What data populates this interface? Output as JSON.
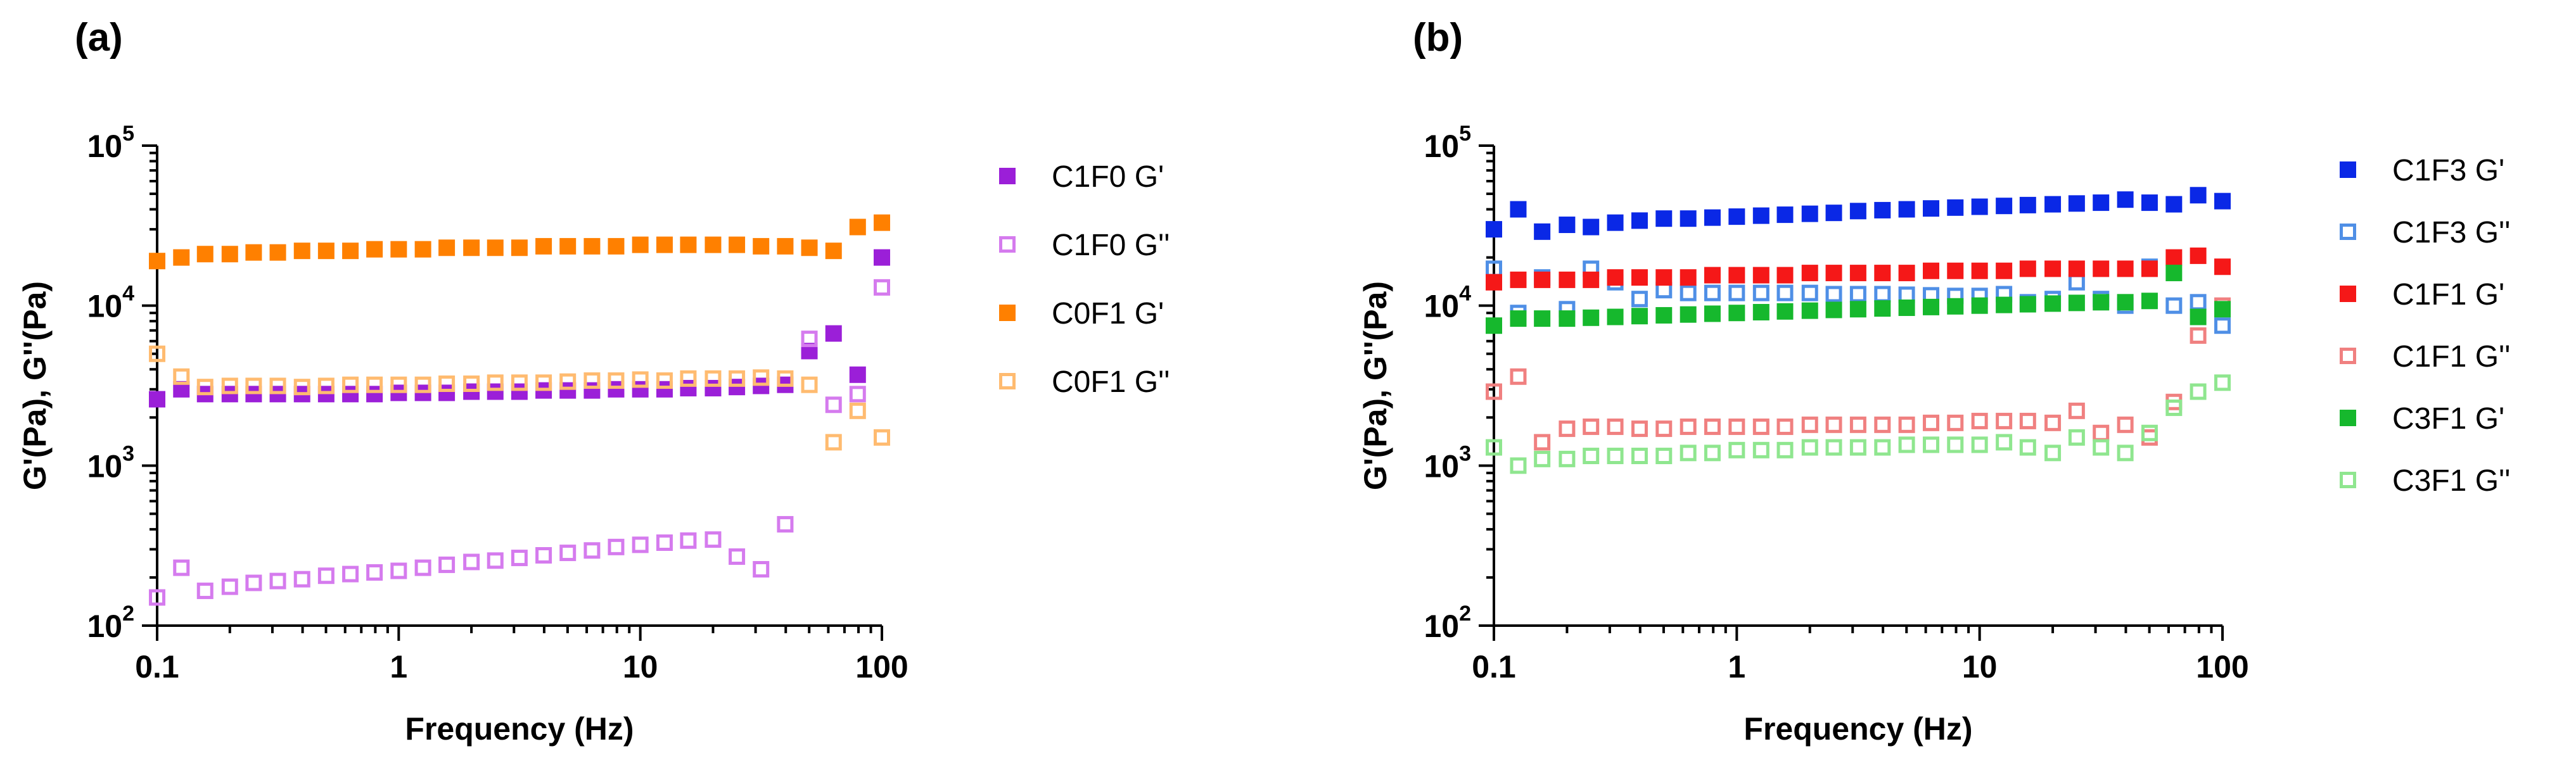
{
  "chart_data": [
    {
      "panel_label": "(a)",
      "type": "scatter",
      "x_scale": "log",
      "y_scale": "log",
      "xlabel": "Frequency (Hz)",
      "ylabel": "G'(Pa), G''(Pa)",
      "xlim": [
        0.1,
        100
      ],
      "ylim": [
        100,
        100000
      ],
      "x_ticks": [
        {
          "value": 0.1,
          "label": "0.1"
        },
        {
          "value": 1,
          "label": "1"
        },
        {
          "value": 10,
          "label": "10"
        },
        {
          "value": 100,
          "label": "100"
        }
      ],
      "y_ticks": [
        {
          "value": 100,
          "base": "10",
          "exp": "2"
        },
        {
          "value": 1000,
          "base": "10",
          "exp": "3"
        },
        {
          "value": 10000,
          "base": "10",
          "exp": "4"
        },
        {
          "value": 100000,
          "base": "10",
          "exp": "5"
        }
      ],
      "legend_position": "right",
      "series": [
        {
          "name": "C1F0 G'",
          "color": "#9B1FD8",
          "marker": "filled-square",
          "x": [
            0.1,
            0.126,
            0.158,
            0.2,
            0.251,
            0.316,
            0.398,
            0.501,
            0.631,
            0.794,
            1,
            1.26,
            1.58,
            2,
            2.51,
            3.16,
            3.98,
            5.01,
            6.31,
            7.94,
            10,
            12.6,
            15.8,
            20,
            25.1,
            31.6,
            39.8,
            50.1,
            63.1,
            79.4,
            100
          ],
          "y": [
            2600,
            3000,
            2800,
            2800,
            2800,
            2800,
            2800,
            2800,
            2800,
            2800,
            2850,
            2850,
            2850,
            2900,
            2900,
            2900,
            2950,
            2950,
            2950,
            3000,
            3000,
            3000,
            3050,
            3050,
            3100,
            3150,
            3200,
            5200,
            6700,
            3700,
            20000
          ]
        },
        {
          "name": "C1F0 G''",
          "color": "#D57BEE",
          "marker": "open-square",
          "x": [
            0.1,
            0.126,
            0.158,
            0.2,
            0.251,
            0.316,
            0.398,
            0.501,
            0.631,
            0.794,
            1,
            1.26,
            1.58,
            2,
            2.51,
            3.16,
            3.98,
            5.01,
            6.31,
            7.94,
            10,
            12.6,
            15.8,
            20,
            25.1,
            31.6,
            39.8,
            50.1,
            63.1,
            79.4,
            100
          ],
          "y": [
            150,
            230,
            165,
            175,
            185,
            190,
            195,
            205,
            210,
            215,
            220,
            230,
            240,
            250,
            255,
            265,
            275,
            285,
            295,
            310,
            320,
            330,
            340,
            345,
            270,
            225,
            430,
            6200,
            2400,
            2800,
            13000
          ]
        },
        {
          "name": "C0F1 G'",
          "color": "#FF8000",
          "marker": "filled-square",
          "x": [
            0.1,
            0.126,
            0.158,
            0.2,
            0.251,
            0.316,
            0.398,
            0.501,
            0.631,
            0.794,
            1,
            1.26,
            1.58,
            2,
            2.51,
            3.16,
            3.98,
            5.01,
            6.31,
            7.94,
            10,
            12.6,
            15.8,
            20,
            25.1,
            31.6,
            39.8,
            50.1,
            63.1,
            79.4,
            100
          ],
          "y": [
            19000,
            20000,
            21000,
            21000,
            21500,
            21500,
            22000,
            22000,
            22000,
            22500,
            22500,
            22500,
            23000,
            23000,
            23000,
            23000,
            23500,
            23500,
            23500,
            23500,
            24000,
            24000,
            24000,
            24000,
            24000,
            23500,
            23500,
            23000,
            22000,
            31000,
            33000
          ]
        },
        {
          "name": "C0F1 G''",
          "color": "#FFBB70",
          "marker": "open-square",
          "x": [
            0.1,
            0.126,
            0.158,
            0.2,
            0.251,
            0.316,
            0.398,
            0.501,
            0.631,
            0.794,
            1,
            1.26,
            1.58,
            2,
            2.51,
            3.16,
            3.98,
            5.01,
            6.31,
            7.94,
            10,
            12.6,
            15.8,
            20,
            25.1,
            31.6,
            39.8,
            50.1,
            63.1,
            79.4,
            100
          ],
          "y": [
            5000,
            3600,
            3100,
            3150,
            3150,
            3150,
            3100,
            3150,
            3200,
            3200,
            3200,
            3200,
            3250,
            3250,
            3300,
            3300,
            3300,
            3350,
            3400,
            3400,
            3450,
            3400,
            3500,
            3500,
            3500,
            3550,
            3500,
            3200,
            1400,
            2200,
            1500
          ]
        }
      ]
    },
    {
      "panel_label": "(b)",
      "type": "scatter",
      "x_scale": "log",
      "y_scale": "log",
      "xlabel": "Frequency (Hz)",
      "ylabel": "G'(Pa), G''(Pa)",
      "xlim": [
        0.1,
        100
      ],
      "ylim": [
        100,
        100000
      ],
      "x_ticks": [
        {
          "value": 0.1,
          "label": "0.1"
        },
        {
          "value": 1,
          "label": "1"
        },
        {
          "value": 10,
          "label": "10"
        },
        {
          "value": 100,
          "label": "100"
        }
      ],
      "y_ticks": [
        {
          "value": 100,
          "base": "10",
          "exp": "2"
        },
        {
          "value": 1000,
          "base": "10",
          "exp": "3"
        },
        {
          "value": 10000,
          "base": "10",
          "exp": "4"
        },
        {
          "value": 100000,
          "base": "10",
          "exp": "5"
        }
      ],
      "legend_position": "right",
      "series": [
        {
          "name": "C1F3 G'",
          "color": "#0A28E6",
          "marker": "filled-square",
          "x": [
            0.1,
            0.126,
            0.158,
            0.2,
            0.251,
            0.316,
            0.398,
            0.501,
            0.631,
            0.794,
            1,
            1.26,
            1.58,
            2,
            2.51,
            3.16,
            3.98,
            5.01,
            6.31,
            7.94,
            10,
            12.6,
            15.8,
            20,
            25.1,
            31.6,
            39.8,
            50.1,
            63.1,
            79.4,
            100
          ],
          "y": [
            30000,
            40000,
            29000,
            32000,
            31000,
            33000,
            34000,
            35000,
            35000,
            35500,
            36000,
            36500,
            37000,
            37500,
            38000,
            39000,
            39500,
            40000,
            40500,
            41000,
            41500,
            42000,
            42500,
            43000,
            43500,
            44000,
            46000,
            44000,
            43000,
            49000,
            45000
          ]
        },
        {
          "name": "C1F3 G''",
          "color": "#4F8FE6",
          "marker": "open-square",
          "x": [
            0.1,
            0.126,
            0.158,
            0.2,
            0.251,
            0.316,
            0.398,
            0.501,
            0.631,
            0.794,
            1,
            1.26,
            1.58,
            2,
            2.51,
            3.16,
            3.98,
            5.01,
            6.31,
            7.94,
            10,
            12.6,
            15.8,
            20,
            25.1,
            31.6,
            39.8,
            50.1,
            63.1,
            79.4,
            100
          ],
          "y": [
            17000,
            9000,
            15000,
            9500,
            17000,
            14000,
            11000,
            12500,
            12000,
            12000,
            12000,
            12000,
            12000,
            12000,
            11800,
            11800,
            11800,
            11700,
            11600,
            11500,
            11500,
            11800,
            10500,
            11000,
            14000,
            11000,
            10000,
            17500,
            10000,
            10500,
            7500
          ]
        },
        {
          "name": "C1F1 G'",
          "color": "#F51818",
          "marker": "filled-square",
          "x": [
            0.1,
            0.126,
            0.158,
            0.2,
            0.251,
            0.316,
            0.398,
            0.501,
            0.631,
            0.794,
            1,
            1.26,
            1.58,
            2,
            2.51,
            3.16,
            3.98,
            5.01,
            6.31,
            7.94,
            10,
            12.6,
            15.8,
            20,
            25.1,
            31.6,
            39.8,
            50.1,
            63.1,
            79.4,
            100
          ],
          "y": [
            14000,
            14500,
            14500,
            14500,
            14500,
            15000,
            15000,
            15000,
            15000,
            15500,
            15500,
            15500,
            15500,
            16000,
            16000,
            16000,
            16000,
            16000,
            16500,
            16500,
            16500,
            16500,
            17000,
            17000,
            17000,
            17000,
            17000,
            17000,
            20000,
            20500,
            17500
          ]
        },
        {
          "name": "C1F1 G''",
          "color": "#F08080",
          "marker": "open-square",
          "x": [
            0.1,
            0.126,
            0.158,
            0.2,
            0.251,
            0.316,
            0.398,
            0.501,
            0.631,
            0.794,
            1,
            1.26,
            1.58,
            2,
            2.51,
            3.16,
            3.98,
            5.01,
            6.31,
            7.94,
            10,
            12.6,
            15.8,
            20,
            25.1,
            31.6,
            39.8,
            50.1,
            63.1,
            79.4,
            100
          ],
          "y": [
            2900,
            3600,
            1400,
            1700,
            1750,
            1750,
            1700,
            1700,
            1750,
            1750,
            1750,
            1750,
            1750,
            1800,
            1800,
            1800,
            1800,
            1800,
            1850,
            1850,
            1900,
            1900,
            1900,
            1850,
            2200,
            1600,
            1800,
            1500,
            2500,
            6500,
            10000
          ]
        },
        {
          "name": "C3F1 G'",
          "color": "#16B82D",
          "marker": "filled-square",
          "x": [
            0.1,
            0.126,
            0.158,
            0.2,
            0.251,
            0.316,
            0.398,
            0.501,
            0.631,
            0.794,
            1,
            1.26,
            1.58,
            2,
            2.51,
            3.16,
            3.98,
            5.01,
            6.31,
            7.94,
            10,
            12.6,
            15.8,
            20,
            25.1,
            31.6,
            39.8,
            50.1,
            63.1,
            79.4,
            100
          ],
          "y": [
            7500,
            8300,
            8300,
            8300,
            8400,
            8500,
            8600,
            8700,
            8800,
            8900,
            9000,
            9100,
            9200,
            9300,
            9400,
            9500,
            9600,
            9700,
            9800,
            9900,
            10000,
            10100,
            10200,
            10300,
            10400,
            10500,
            10500,
            10700,
            16000,
            8500,
            9500
          ]
        },
        {
          "name": "C3F1 G''",
          "color": "#8FE68F",
          "marker": "open-square",
          "x": [
            0.1,
            0.126,
            0.158,
            0.2,
            0.251,
            0.316,
            0.398,
            0.501,
            0.631,
            0.794,
            1,
            1.26,
            1.58,
            2,
            2.51,
            3.16,
            3.98,
            5.01,
            6.31,
            7.94,
            10,
            12.6,
            15.8,
            20,
            25.1,
            31.6,
            39.8,
            50.1,
            63.1,
            79.4,
            100
          ],
          "y": [
            1300,
            1000,
            1100,
            1100,
            1150,
            1150,
            1150,
            1150,
            1200,
            1200,
            1250,
            1250,
            1250,
            1300,
            1300,
            1300,
            1300,
            1350,
            1350,
            1350,
            1350,
            1400,
            1300,
            1200,
            1500,
            1300,
            1200,
            1600,
            2300,
            2900,
            3300
          ]
        }
      ]
    }
  ]
}
